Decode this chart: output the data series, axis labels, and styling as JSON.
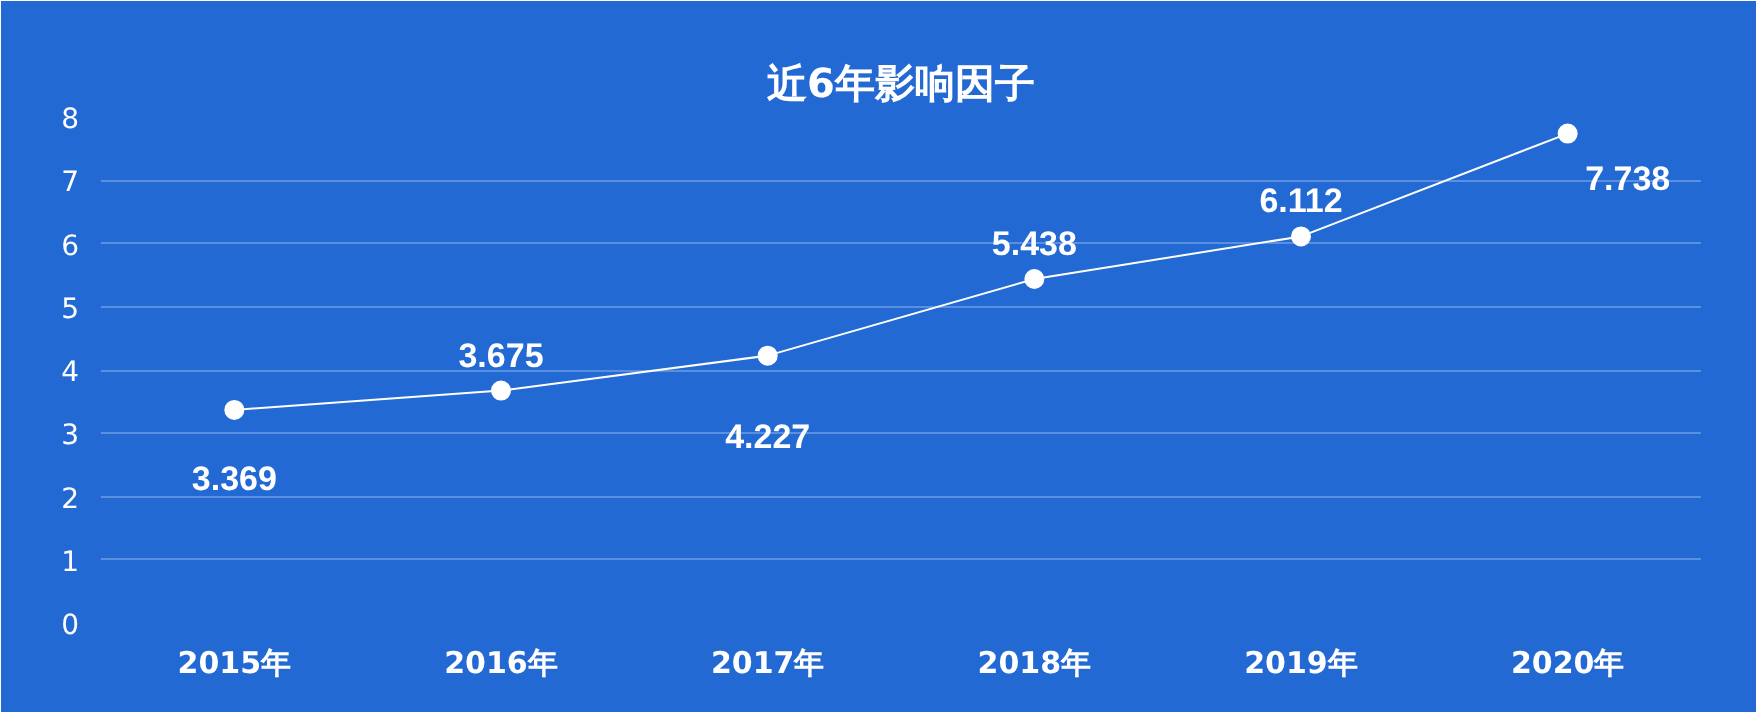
{
  "chart_data": {
    "type": "line",
    "title": "近6年影响因子",
    "categories": [
      "2015年",
      "2016年",
      "2017年",
      "2018年",
      "2019年",
      "2020年"
    ],
    "series": [
      {
        "color": "#ffffff",
        "values": [
          3.369,
          3.675,
          4.227,
          5.438,
          6.112,
          7.738
        ]
      }
    ],
    "ylim": [
      0,
      8
    ],
    "yticks": [
      0,
      1,
      2,
      3,
      4,
      5,
      6,
      7,
      8
    ],
    "grid": "y",
    "marker": "circle",
    "line_style": "solid",
    "data_labels": true
  }
}
